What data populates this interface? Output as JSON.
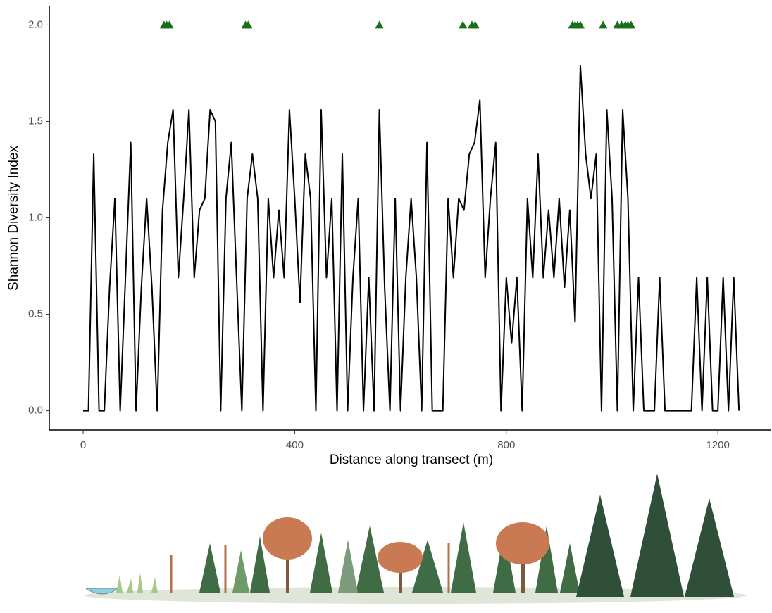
{
  "chart_data": {
    "type": "line",
    "xlabel": "Distance along transect (m)",
    "ylabel": "Shannon Diversity Index",
    "xlim": [
      -64,
      1301
    ],
    "ylim": [
      -0.1,
      2.1
    ],
    "xticks": [
      0,
      400,
      800,
      1200
    ],
    "yticks": [
      {
        "value": 0,
        "label": "0.0"
      },
      0.5,
      {
        "value": 1,
        "label": "1.0"
      },
      1.5,
      {
        "value": 2,
        "label": "2.0"
      }
    ],
    "grid": false,
    "x": [
      0,
      10,
      20,
      30,
      40,
      50,
      60,
      70,
      80,
      90,
      100,
      110,
      120,
      130,
      140,
      150,
      160,
      170,
      180,
      190,
      200,
      210,
      220,
      230,
      240,
      250,
      260,
      270,
      280,
      290,
      300,
      310,
      320,
      330,
      340,
      350,
      360,
      370,
      380,
      390,
      400,
      410,
      420,
      430,
      440,
      450,
      460,
      470,
      480,
      490,
      500,
      510,
      520,
      530,
      540,
      550,
      560,
      570,
      580,
      590,
      600,
      610,
      620,
      630,
      640,
      650,
      660,
      670,
      680,
      690,
      700,
      710,
      720,
      730,
      740,
      750,
      760,
      770,
      780,
      790,
      800,
      810,
      820,
      830,
      840,
      850,
      860,
      870,
      880,
      890,
      900,
      910,
      920,
      930,
      940,
      950,
      960,
      970,
      980,
      990,
      1000,
      1010,
      1020,
      1030,
      1040,
      1050,
      1060,
      1070,
      1080,
      1090,
      1100,
      1110,
      1120,
      1130,
      1140,
      1150,
      1160,
      1170,
      1180,
      1190,
      1200,
      1210,
      1220,
      1230,
      1240
    ],
    "series": [
      {
        "type": "line",
        "color": "#000000",
        "values": [
          0,
          0,
          1.33,
          0,
          0,
          0.64,
          1.1,
          0,
          0.69,
          1.39,
          0,
          0.64,
          1.1,
          0.64,
          0,
          1.04,
          1.39,
          1.56,
          0.69,
          1.1,
          1.56,
          0.69,
          1.04,
          1.1,
          1.56,
          1.5,
          0,
          1.1,
          1.39,
          0.69,
          0,
          1.1,
          1.33,
          1.1,
          0,
          1.1,
          0.69,
          1.04,
          0.69,
          1.56,
          1.1,
          0.56,
          1.33,
          1.1,
          0,
          1.56,
          0.69,
          1.1,
          0,
          1.33,
          0,
          0.69,
          1.1,
          0,
          0.69,
          0,
          1.56,
          0.64,
          0,
          1.1,
          0,
          0.69,
          1.1,
          0.69,
          0,
          1.39,
          0,
          0,
          0,
          1.1,
          0.69,
          1.1,
          1.04,
          1.33,
          1.39,
          1.61,
          0.69,
          1.1,
          1.39,
          0,
          0.69,
          0.35,
          0.69,
          0,
          1.1,
          0.69,
          1.33,
          0.69,
          1.04,
          0.69,
          1.1,
          0.64,
          1.04,
          0.46,
          1.79,
          1.33,
          1.1,
          1.33,
          0,
          1.56,
          1.1,
          0,
          1.56,
          1.1,
          0,
          0.69,
          0,
          0,
          0,
          0.69,
          0,
          0,
          0,
          0,
          0,
          0,
          0.69,
          0,
          0.69,
          0,
          0,
          0.69,
          0,
          0.69,
          0
        ]
      },
      {
        "type": "scatter",
        "color": "#1a6e1a",
        "marker": "triangle",
        "x": [
          153,
          158,
          163,
          307,
          312,
          560,
          718,
          735,
          741,
          925,
          930,
          935,
          940,
          983,
          1010,
          1018,
          1025,
          1030,
          1036
        ],
        "values": [
          2,
          2,
          2,
          2,
          2,
          2,
          2,
          2,
          2,
          2,
          2,
          2,
          2,
          2,
          2,
          2,
          2,
          2,
          2
        ]
      }
    ]
  }
}
